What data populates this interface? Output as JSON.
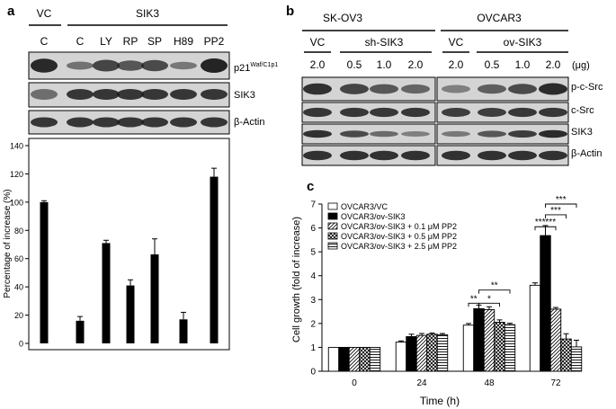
{
  "panel_a": {
    "letter": "a",
    "group_vc": "VC",
    "group_sik3": "SIK3",
    "lanes": [
      "C",
      "C",
      "LY",
      "RP",
      "SP",
      "H89",
      "PP2"
    ],
    "blot_labels": {
      "p21_main": "p21",
      "p21_sup": "Waf/C1p1",
      "sik3": "SIK3",
      "actin": "β-Actin"
    },
    "chart_data": {
      "type": "bar",
      "categories": [
        "C",
        "C",
        "LY",
        "RP",
        "SP",
        "H89",
        "PP2"
      ],
      "values": [
        100,
        16,
        71,
        41,
        63,
        17,
        118
      ],
      "errors": [
        1,
        3,
        2,
        4,
        11,
        5,
        6
      ],
      "ylabel": "Percentage of increase (%)",
      "xlabel": "",
      "ylim": [
        0,
        140
      ],
      "yticks": [
        0,
        20,
        40,
        60,
        80,
        100,
        120,
        140
      ],
      "grid": false
    }
  },
  "panel_b": {
    "letter": "b",
    "cell_line_1": "SK-OV3",
    "cell_line_2": "OVCAR3",
    "groups": [
      "VC",
      "sh-SIK3",
      "VC",
      "ov-SIK3"
    ],
    "doses": [
      "2.0",
      "0.5",
      "1.0",
      "2.0",
      "2.0",
      "0.5",
      "1.0",
      "2.0"
    ],
    "dose_unit": "(μg)",
    "blot_labels": [
      "p-c-Src",
      "c-Src",
      "SIK3",
      "β-Actin"
    ]
  },
  "panel_c": {
    "letter": "c",
    "chart_data": {
      "type": "bar",
      "categories": [
        "0",
        "24",
        "48",
        "72"
      ],
      "xlabel": "Time (h)",
      "ylabel": "Cell growth (fold of increase)",
      "ylim": [
        0,
        7
      ],
      "yticks": [
        0,
        1,
        2,
        3,
        4,
        5,
        6,
        7
      ],
      "grid": false,
      "legend_position": "top-left",
      "series": [
        {
          "name": "OVCAR3/VC",
          "values": [
            1.0,
            1.22,
            1.93,
            3.6
          ],
          "errors": [
            0.0,
            0.05,
            0.07,
            0.1
          ]
        },
        {
          "name": "OVCAR3/ov-SIK3",
          "values": [
            1.0,
            1.45,
            2.62,
            5.68
          ],
          "errors": [
            0.0,
            0.1,
            0.15,
            0.42
          ]
        },
        {
          "name": "OVCAR3/ov-SIK3 + 0.1 μM PP2",
          "values": [
            1.0,
            1.5,
            2.58,
            2.6
          ],
          "errors": [
            0.0,
            0.08,
            0.12,
            0.07
          ]
        },
        {
          "name": "OVCAR3/ov-SIK3 + 0.5 μM PP2",
          "values": [
            1.0,
            1.55,
            2.05,
            1.35
          ],
          "errors": [
            0.0,
            0.05,
            0.1,
            0.22
          ]
        },
        {
          "name": "OVCAR3/ov-SIK3 + 2.5 μM PP2",
          "values": [
            1.0,
            1.53,
            1.95,
            1.02
          ],
          "errors": [
            0.0,
            0.05,
            0.06,
            0.28
          ]
        }
      ],
      "significance": [
        "**",
        "*",
        "**",
        "***",
        "***",
        "***",
        "***"
      ]
    }
  },
  "colors": {
    "bar": "#000000",
    "blot_bg": "#d4d4d4",
    "band": "#1a1a1a"
  }
}
